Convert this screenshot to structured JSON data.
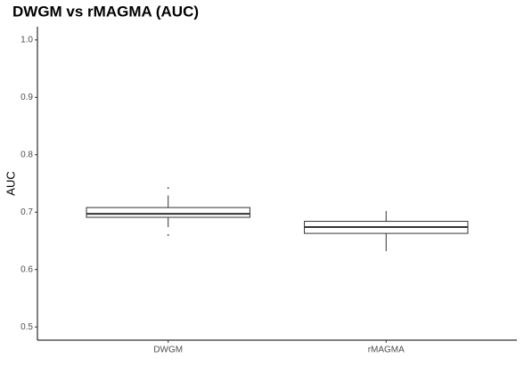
{
  "chart_data": {
    "type": "box",
    "title": "DWGM vs rMAGMA (AUC)",
    "y_label": "AUC",
    "categories": [
      "DWGM",
      "rMAGMA"
    ],
    "boxes": [
      {
        "whisker_low": 0.674,
        "q1": 0.691,
        "median": 0.697,
        "q3": 0.708,
        "whisker_high": 0.729,
        "outliers": [
          0.742,
          0.66
        ]
      },
      {
        "whisker_low": 0.632,
        "q1": 0.663,
        "median": 0.674,
        "q3": 0.684,
        "whisker_high": 0.702,
        "outliers": []
      }
    ],
    "color": "#333333",
    "fill": "#ffffff",
    "ylim": [
      0.477,
      1.023
    ],
    "yticks": [
      0.5,
      0.6,
      0.7,
      0.8,
      0.9,
      {
        "value": 1,
        "label": "1.0"
      }
    ]
  }
}
